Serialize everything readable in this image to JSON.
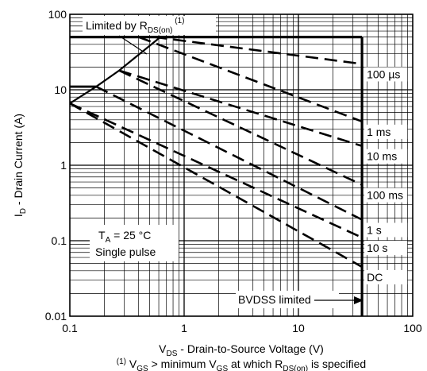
{
  "chart_data": {
    "type": "line",
    "xscale": "log",
    "yscale": "log",
    "xlim": [
      0.1,
      100
    ],
    "ylim": [
      0.01,
      100
    ],
    "grid": true,
    "xlabel": {
      "main": "V",
      "sub": "DS",
      "rest": " - Drain-to-Source Voltage (V)"
    },
    "ylabel": {
      "main": "I",
      "sub": "D",
      "rest": " - Drain Current (A)"
    },
    "xtick_labels": [
      "0.1",
      "1",
      "10",
      "100"
    ],
    "ytick_labels": [
      "0.01",
      "0.1",
      "1",
      "10",
      "100"
    ],
    "series": [
      {
        "name": "100 µs",
        "points": [
          [
            0.55,
            50
          ],
          [
            36,
            22
          ]
        ]
      },
      {
        "name": "1 ms",
        "points": [
          [
            0.4,
            50
          ],
          [
            36,
            3.8
          ]
        ]
      },
      {
        "name": "10 ms",
        "points": [
          [
            0.27,
            18
          ],
          [
            36,
            1.8
          ]
        ]
      },
      {
        "name": "100 ms",
        "points": [
          [
            0.27,
            18
          ],
          [
            36,
            0.55
          ]
        ]
      },
      {
        "name": "1 s",
        "points": [
          [
            0.17,
            11
          ],
          [
            36,
            0.19
          ]
        ]
      },
      {
        "name": "10 s",
        "points": [
          [
            0.1,
            6.6
          ],
          [
            36,
            0.11
          ]
        ]
      },
      {
        "name": "DC",
        "points": [
          [
            0.1,
            6.6
          ],
          [
            36,
            0.045
          ]
        ]
      }
    ],
    "limit_lines": {
      "rds_on": [
        [
          0.1,
          6.6
        ],
        [
          0.17,
          11
        ],
        [
          0.27,
          18
        ],
        [
          0.62,
          50
        ]
      ],
      "current_limit": 50,
      "current_limit_ext": 11,
      "bvdss_v": 36
    },
    "annotations": {
      "limited_by": {
        "pre": "Limited by R",
        "sub": "DS(on)",
        "sup": " (1)"
      },
      "bvdss": "BVDSS limited",
      "condition_line1": {
        "pre": "T",
        "sub": "A",
        "post": " = 25 °C"
      },
      "condition_line2": "Single pulse"
    },
    "footnote": {
      "sup": "(1)",
      "p1": " V",
      "s1": "GS",
      "p2": " > minimum V",
      "s2": "GS",
      "p3": " at which R",
      "s3": "DS(on)",
      "p4": " is specified"
    }
  }
}
